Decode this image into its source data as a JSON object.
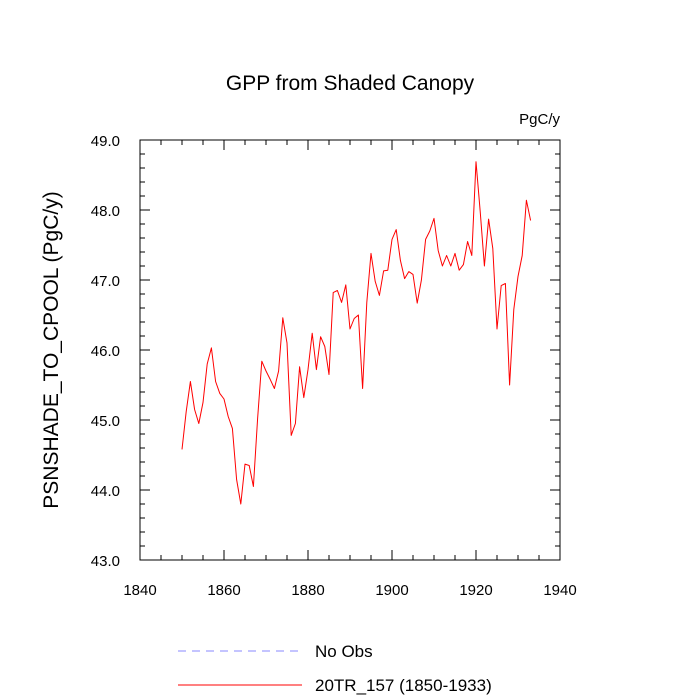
{
  "chart_data": {
    "type": "line",
    "title": "GPP from Shaded Canopy",
    "units": "PgC/y",
    "ylabel": "PSNSHADE_TO_CPOOL  (PgC/y)",
    "xlabel": "",
    "xlim": [
      1840,
      1940
    ],
    "ylim": [
      43.0,
      49.0
    ],
    "x_ticks": [
      1840,
      1860,
      1880,
      1900,
      1920,
      1940
    ],
    "x_tick_labels": [
      "1840",
      "1860",
      "1880",
      "1900",
      "1920",
      "1940"
    ],
    "y_ticks": [
      43,
      44,
      45,
      46,
      47,
      48,
      49
    ],
    "y_tick_labels": [
      "43.0",
      "44.0",
      "45.0",
      "46.0",
      "47.0",
      "48.0",
      "49.0"
    ],
    "legend": {
      "placement": "bottom",
      "entries": [
        {
          "label": "No Obs",
          "color": "#8888ff",
          "style": "dashed"
        },
        {
          "label": "20TR_157 (1850-1933)",
          "color": "#ff0000",
          "style": "solid"
        }
      ]
    },
    "series": [
      {
        "name": "20TR_157 (1850-1933)",
        "color": "#ff0000",
        "x": [
          1850,
          1851,
          1852,
          1853,
          1854,
          1855,
          1856,
          1857,
          1858,
          1859,
          1860,
          1861,
          1862,
          1863,
          1864,
          1865,
          1866,
          1867,
          1868,
          1869,
          1870,
          1871,
          1872,
          1873,
          1874,
          1875,
          1876,
          1877,
          1878,
          1879,
          1880,
          1881,
          1882,
          1883,
          1884,
          1885,
          1886,
          1887,
          1888,
          1889,
          1890,
          1891,
          1892,
          1893,
          1894,
          1895,
          1896,
          1897,
          1898,
          1899,
          1900,
          1901,
          1902,
          1903,
          1904,
          1905,
          1906,
          1907,
          1908,
          1909,
          1910,
          1911,
          1912,
          1913,
          1914,
          1915,
          1916,
          1917,
          1918,
          1919,
          1920,
          1921,
          1922,
          1923,
          1924,
          1925,
          1926,
          1927,
          1928,
          1929,
          1930,
          1931,
          1932,
          1933
        ],
        "y": [
          44.58,
          45.12,
          45.55,
          45.15,
          44.95,
          45.25,
          45.8,
          46.03,
          45.55,
          45.38,
          45.3,
          45.05,
          44.88,
          44.15,
          43.8,
          44.37,
          44.35,
          44.05,
          45.02,
          45.84,
          45.7,
          45.58,
          45.45,
          45.7,
          46.46,
          46.1,
          44.78,
          44.95,
          45.76,
          45.32,
          45.72,
          46.24,
          45.72,
          46.19,
          46.05,
          45.65,
          46.82,
          46.85,
          46.68,
          46.93,
          46.3,
          46.45,
          46.5,
          45.45,
          46.68,
          47.38,
          46.98,
          46.78,
          47.13,
          47.14,
          47.58,
          47.72,
          47.28,
          47.02,
          47.12,
          47.08,
          46.67,
          47.0,
          47.58,
          47.7,
          47.88,
          47.42,
          47.2,
          47.35,
          47.2,
          47.38,
          47.14,
          47.22,
          47.55,
          47.35,
          48.69,
          47.98,
          47.2,
          47.87,
          47.45,
          46.3,
          46.92,
          46.95,
          45.5,
          46.58,
          47.05,
          47.35,
          48.14,
          47.85
        ]
      }
    ]
  }
}
